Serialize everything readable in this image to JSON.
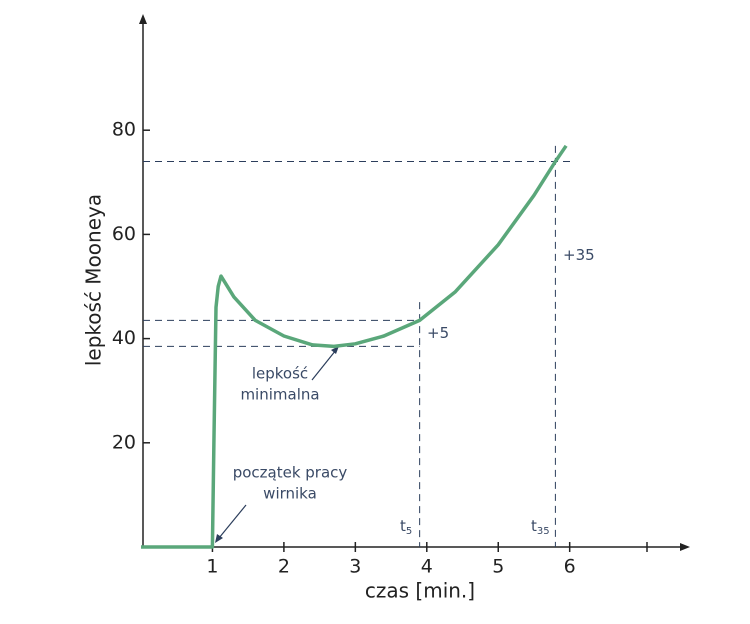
{
  "chart_data": {
    "type": "line",
    "xlabel": "czas [min.]",
    "ylabel": "lepkość Mooneya",
    "x": [
      0,
      1,
      1.02,
      1.05,
      1.08,
      1.12,
      1.3,
      1.6,
      2.0,
      2.4,
      2.7,
      3.0,
      3.4,
      3.9,
      4.4,
      5.0,
      5.5,
      5.8,
      5.95
    ],
    "series": [
      {
        "color": "#5aa77a",
        "values": [
          0,
          0,
          20,
          46,
          50,
          52,
          48,
          43.5,
          40.5,
          38.8,
          38.5,
          39,
          40.5,
          43.5,
          49,
          58,
          67.5,
          74,
          77
        ]
      }
    ],
    "xlim": [
      0,
      7.6
    ],
    "ylim": [
      0,
      100
    ],
    "xticks": [
      1,
      2,
      3,
      4,
      5,
      6
    ],
    "yticks": [
      20,
      40,
      60,
      80
    ],
    "hlines": [
      74,
      43.5,
      38.5
    ],
    "vlines": [
      3.9,
      5.8
    ],
    "ref_color": "#2c3e5c",
    "annotations": [
      {
        "text": "+35"
      },
      {
        "text": "+5"
      },
      {
        "text": "t",
        "subscript": "5"
      },
      {
        "text": "t",
        "subscript": "35"
      },
      {
        "lines": [
          "lepkość",
          "minimalna"
        ]
      },
      {
        "lines": [
          "początek pracy",
          "wirnika"
        ]
      }
    ]
  }
}
